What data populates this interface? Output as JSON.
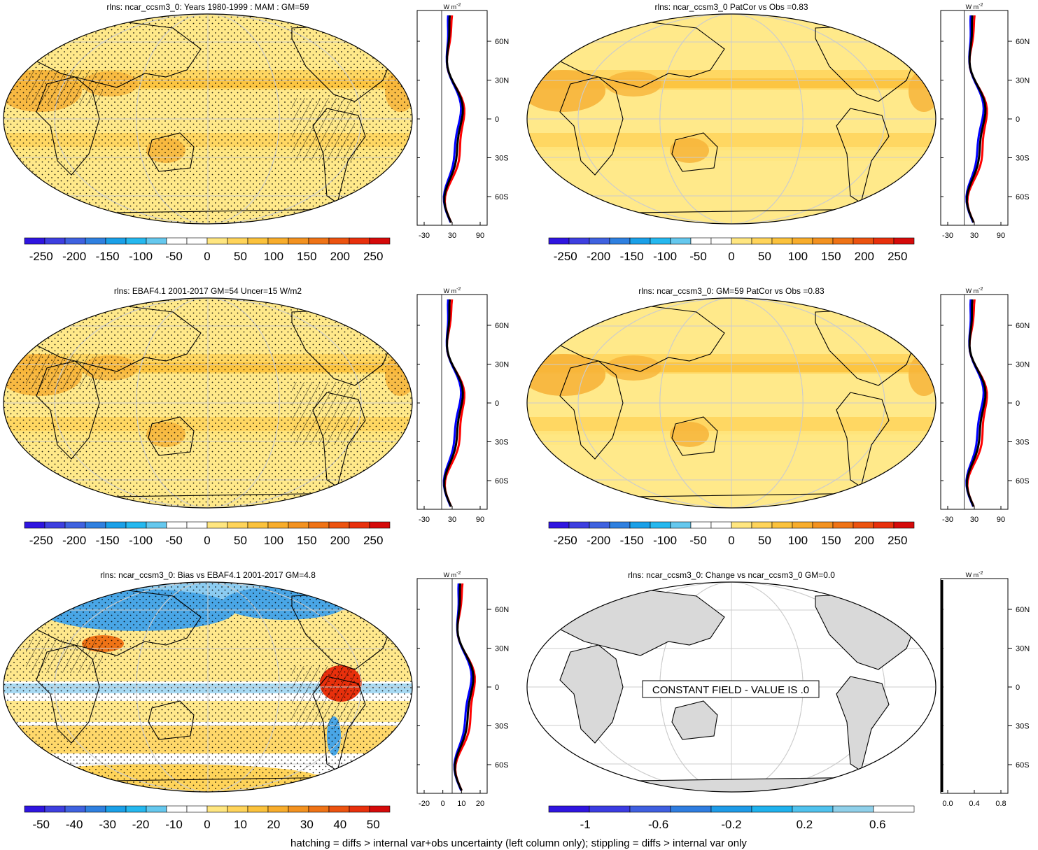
{
  "colors": {
    "ocean_fill": "#ffe98a",
    "warm": "#f7b43a",
    "land_grey": "#d9d9d9",
    "zonal_model": "#0000ff",
    "zonal_obs": "#ff0000",
    "zonal_mean": "#000000"
  },
  "palette_abs": [
    "#2f15e0",
    "#3e3fe0",
    "#3f62e0",
    "#2f80e0",
    "#1aa0e8",
    "#25b8ef",
    "#65c8ee",
    "#ffffff",
    "#ffffff",
    "#ffe680",
    "#ffd45a",
    "#fbc23c",
    "#f8ad2c",
    "#f39220",
    "#ef7316",
    "#ec5310",
    "#e8300c",
    "#d50a0a"
  ],
  "palette_bias": [
    "#2f15e0",
    "#3e3fe0",
    "#3f62e0",
    "#2f80e0",
    "#1aa0e8",
    "#25b8ef",
    "#65c8ee",
    "#ffffff",
    "#ffffff",
    "#ffe680",
    "#ffd45a",
    "#fbc23c",
    "#f8ad2c",
    "#f39220",
    "#ef7316",
    "#ec5310",
    "#e8300c",
    "#d50a0a"
  ],
  "palette_change": [
    "#2f15e0",
    "#3b3ce2",
    "#3f5fe0",
    "#2f7de0",
    "#1e9be8",
    "#1fb2ee",
    "#50c2ee",
    "#8fd0ea",
    "#ffffff"
  ],
  "units_label": "W m",
  "units_sup": "-2",
  "footer": "hatching = diffs > internal var+obs uncertainty (left column only); stippling = diffs > internal var only",
  "constant_field_label": "CONSTANT FIELD - VALUE IS .0",
  "chart_data": [
    {
      "type": "heatmap",
      "title": "rlns: ncar_ccsm3_0: Years 1980-1999 : MAM : GM=59",
      "colorbar_labels": [
        "-250",
        "-200",
        "-150",
        "-100",
        "-50",
        "0",
        "50",
        "100",
        "150",
        "200",
        "250"
      ],
      "zonal_lat_ticks": [
        "60N",
        "30N",
        "0",
        "30S",
        "60S"
      ],
      "zonal_x_ticks": [
        "-30",
        "30",
        "90"
      ]
    },
    {
      "type": "heatmap",
      "title": "rlns: ncar_ccsm3_0 PatCor vs Obs =0.83",
      "colorbar_labels": [
        "-250",
        "-200",
        "-150",
        "-100",
        "-50",
        "0",
        "50",
        "100",
        "150",
        "200",
        "250"
      ],
      "zonal_lat_ticks": [
        "60N",
        "30N",
        "0",
        "30S",
        "60S"
      ],
      "zonal_x_ticks": [
        "-30",
        "30",
        "90"
      ]
    },
    {
      "type": "heatmap",
      "title": "rlns: EBAF4.1 2001-2017 GM=54 Uncer=15 W/m2",
      "colorbar_labels": [
        "-250",
        "-200",
        "-150",
        "-100",
        "-50",
        "0",
        "50",
        "100",
        "150",
        "200",
        "250"
      ],
      "zonal_lat_ticks": [
        "60N",
        "30N",
        "0",
        "30S",
        "60S"
      ],
      "zonal_x_ticks": [
        "-30",
        "30",
        "90"
      ]
    },
    {
      "type": "heatmap",
      "title": "rlns: ncar_ccsm3_0: GM=59 PatCor vs Obs =0.83",
      "colorbar_labels": [
        "-250",
        "-200",
        "-150",
        "-100",
        "-50",
        "0",
        "50",
        "100",
        "150",
        "200",
        "250"
      ],
      "zonal_lat_ticks": [
        "60N",
        "30N",
        "0",
        "30S",
        "60S"
      ],
      "zonal_x_ticks": [
        "-30",
        "30",
        "90"
      ]
    },
    {
      "type": "heatmap",
      "title": "rlns: ncar_ccsm3_0: Bias vs EBAF4.1 2001-2017 GM=4.8",
      "colorbar_labels": [
        "-50",
        "-40",
        "-30",
        "-20",
        "-10",
        "0",
        "10",
        "20",
        "30",
        "40",
        "50"
      ],
      "zonal_lat_ticks": [
        "60N",
        "30N",
        "0",
        "30S",
        "60S"
      ],
      "zonal_x_ticks": [
        "-20",
        "0",
        "10",
        "20"
      ]
    },
    {
      "type": "heatmap",
      "title": "rlns: ncar_ccsm3_0: Change vs ncar_ccsm3_0 GM=0.0",
      "colorbar_labels": [
        "-1",
        "-0.6",
        "-0.2",
        "0.2",
        "0.6"
      ],
      "zonal_lat_ticks": [
        "60N",
        "30N",
        "0",
        "30S",
        "60S"
      ],
      "zonal_x_ticks": [
        "0.0",
        "0.4",
        "0.8"
      ]
    }
  ]
}
